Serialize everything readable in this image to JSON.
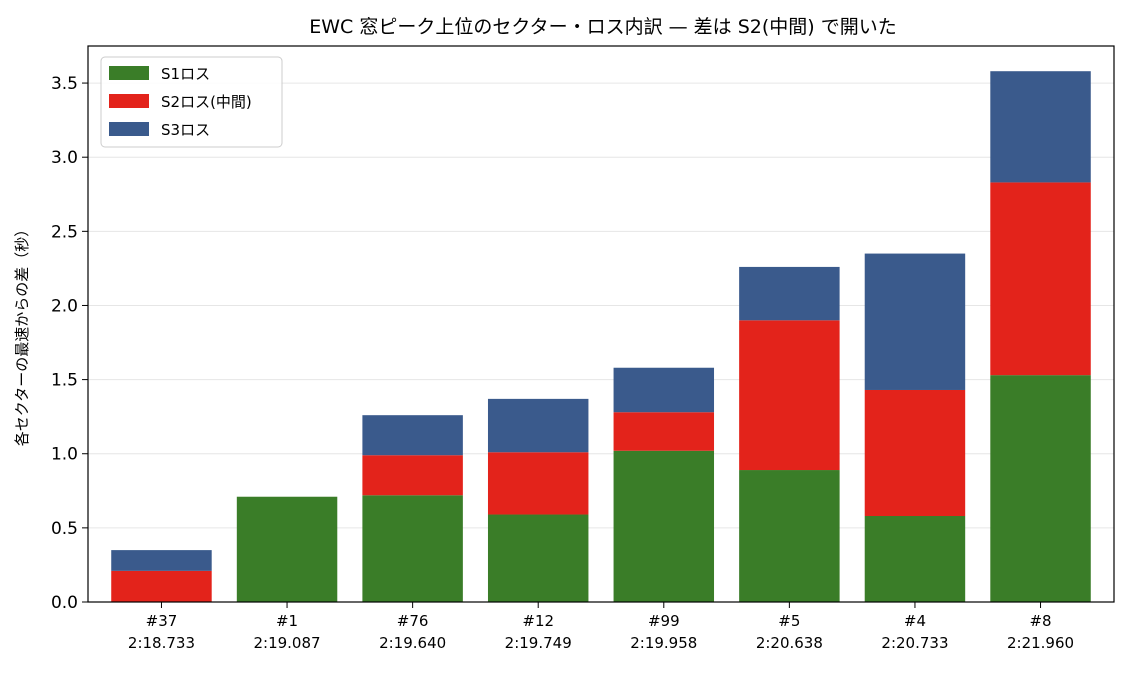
{
  "chart_data": {
    "type": "bar",
    "stacked": true,
    "title": "EWC 窓ピーク上位のセクター・ロス内訳 — 差は S2(中間) で開いた",
    "xlabel": "",
    "ylabel": "各セクターの最速からの差（秒）",
    "ylim": [
      0,
      3.75
    ],
    "yticks": [
      0.0,
      0.5,
      1.0,
      1.5,
      2.0,
      2.5,
      3.0,
      3.5
    ],
    "ytick_labels": [
      "0.0",
      "0.5",
      "1.0",
      "1.5",
      "2.0",
      "2.5",
      "3.0",
      "3.5"
    ],
    "grid": "y",
    "legend_position": "top-left",
    "categories": [
      {
        "car": "#37",
        "time": "2:18.733"
      },
      {
        "car": "#1",
        "time": "2:19.087"
      },
      {
        "car": "#76",
        "time": "2:19.640"
      },
      {
        "car": "#12",
        "time": "2:19.749"
      },
      {
        "car": "#99",
        "time": "2:19.958"
      },
      {
        "car": "#5",
        "time": "2:20.638"
      },
      {
        "car": "#4",
        "time": "2:20.733"
      },
      {
        "car": "#8",
        "time": "2:21.960"
      }
    ],
    "series": [
      {
        "name": "S1ロス",
        "color": "#3a7d28",
        "values": [
          0.0,
          0.71,
          0.72,
          0.59,
          1.02,
          0.89,
          0.58,
          1.53
        ]
      },
      {
        "name": "S2ロス(中間)",
        "color": "#e3231b",
        "values": [
          0.21,
          0.0,
          0.27,
          0.42,
          0.26,
          1.01,
          0.85,
          1.3
        ]
      },
      {
        "name": "S3ロス",
        "color": "#3a5a8c",
        "values": [
          0.14,
          0.0,
          0.27,
          0.36,
          0.3,
          0.36,
          0.92,
          0.75
        ]
      }
    ]
  }
}
